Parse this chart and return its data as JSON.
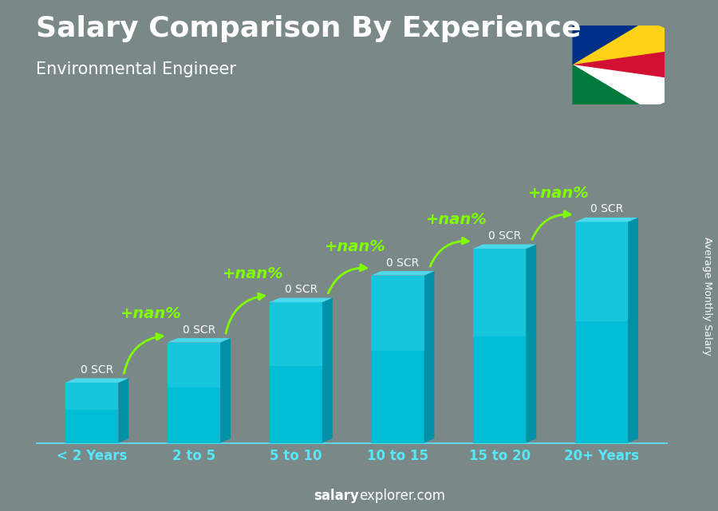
{
  "title": "Salary Comparison By Experience",
  "subtitle": "Environmental Engineer",
  "categories": [
    "< 2 Years",
    "2 to 5",
    "5 to 10",
    "10 to 15",
    "15 to 20",
    "20+ Years"
  ],
  "salary_labels": [
    "0 SCR",
    "0 SCR",
    "0 SCR",
    "0 SCR",
    "0 SCR",
    "0 SCR"
  ],
  "pct_labels": [
    "+nan%",
    "+nan%",
    "+nan%",
    "+nan%",
    "+nan%"
  ],
  "pct_label_color": "#7fff00",
  "arrow_color": "#7fff00",
  "footer_salary": "salary",
  "footer_rest": "explorer.com",
  "side_label": "Average Monthly Salary",
  "bar_front_color": "#00bcd4",
  "bar_top_color": "#4dd9ec",
  "bar_side_color": "#0090a8",
  "bar_heights": [
    1.8,
    3.0,
    4.2,
    5.0,
    5.8,
    6.6
  ],
  "bg_color": "#7a8888",
  "text_color": "#ffffff",
  "title_fontsize": 26,
  "subtitle_fontsize": 15,
  "cat_fontsize": 12,
  "salary_fontsize": 10,
  "pct_fontsize": 14,
  "side_fontsize": 9,
  "footer_fontsize": 12,
  "flag_colors": [
    "#003087",
    "#FCD116",
    "#D21034",
    "#FFFFFF",
    "#007A3D"
  ],
  "flag_angles_deg": [
    90,
    54,
    18,
    -18,
    -54,
    -90
  ]
}
